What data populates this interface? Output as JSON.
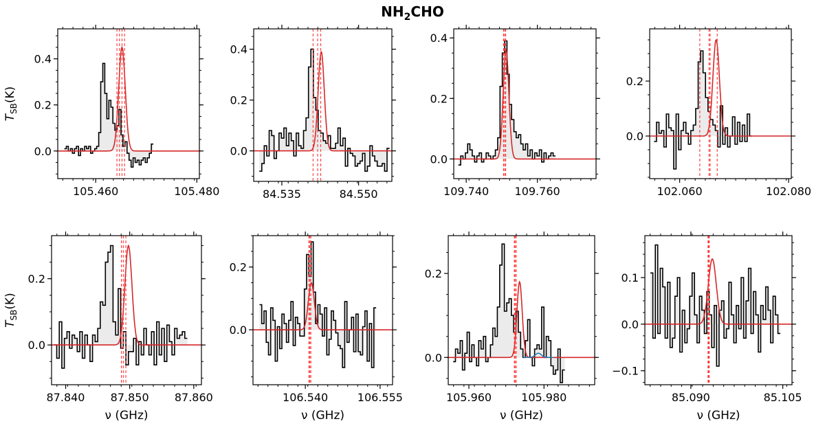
{
  "figure": {
    "title": "NH",
    "title_sub": "2",
    "title_rest": "CHO",
    "ylabel": "T",
    "ylabel_sub": "SB",
    "ylabel_unit": "(K)",
    "xlabel": "ν (GHz)",
    "colors": {
      "observed": "#000000",
      "fill": "#ebebeb",
      "model": "#d62728",
      "marker": "#ff3333",
      "blend": "#1f77b4"
    }
  },
  "chart_data": [
    {
      "type": "line",
      "panel": "row1-col1",
      "xlim": [
        105.4525,
        105.4805
      ],
      "ylim": [
        -0.12,
        0.53
      ],
      "xticks": [
        105.46,
        105.48
      ],
      "xtick_labels": [
        "105.460",
        "105.480"
      ],
      "yticks": [
        0.0,
        0.2,
        0.4
      ],
      "ytick_labels": [
        "0.0",
        "0.2",
        "0.4"
      ],
      "ytick_side": "left",
      "show_ylabel": true,
      "show_xlabel": false,
      "x_start": 105.4538,
      "x_step": 0.0004,
      "observed": [
        0.01,
        0.02,
        0.0,
        0.01,
        -0.01,
        0.01,
        0.02,
        -0.02,
        0.01,
        0.0,
        0.02,
        0.01,
        0.02,
        -0.01,
        0.0,
        0.01,
        0.02,
        0.08,
        0.3,
        0.38,
        0.25,
        0.14,
        0.22,
        0.19,
        0.12,
        0.09,
        0.11,
        0.18,
        0.07,
        0.02,
        0.04,
        -0.01,
        -0.04,
        -0.07,
        -0.03,
        -0.05,
        -0.04,
        -0.06,
        -0.04,
        -0.03,
        -0.05,
        -0.03,
        -0.01,
        0.03
      ],
      "model": {
        "center": 105.4652,
        "amplitude": 0.45,
        "sigma": 0.00065
      },
      "markers": [
        105.4642,
        105.4647,
        105.4652,
        105.4657
      ],
      "blend": null
    },
    {
      "type": "line",
      "panel": "row1-col2",
      "xlim": [
        84.5295,
        84.5565
      ],
      "ylim": [
        -0.12,
        0.48
      ],
      "xticks": [
        84.535,
        84.55
      ],
      "xtick_labels": [
        "84.535",
        "84.550"
      ],
      "yticks": [
        0.0,
        0.2,
        0.4
      ],
      "ytick_labels": [
        "0.0",
        "0.2",
        "0.4"
      ],
      "ytick_side": "left",
      "show_ylabel": false,
      "show_xlabel": false,
      "x_start": 84.5306,
      "x_step": 0.00048,
      "observed": [
        -0.08,
        -0.05,
        0.02,
        -0.02,
        0.08,
        0.06,
        -0.03,
        0.0,
        0.07,
        0.05,
        0.09,
        0.02,
        0.07,
        0.04,
        -0.02,
        0.07,
        0.02,
        0.01,
        0.08,
        0.13,
        0.33,
        0.4,
        0.21,
        0.16,
        0.08,
        0.07,
        0.04,
        0.03,
        0.06,
        0.01,
        0.01,
        0.03,
        0.09,
        0.02,
        0.05,
        -0.06,
        0.01,
        -0.01,
        -0.02,
        -0.06,
        -0.05,
        -0.04,
        -0.01,
        -0.08,
        -0.06,
        0.02,
        -0.02,
        -0.04,
        -0.06,
        -0.06,
        -0.05,
        -0.08,
        0.01
      ],
      "model": {
        "center": 84.5427,
        "amplitude": 0.39,
        "sigma": 0.0006
      },
      "markers": [
        84.5411,
        84.542,
        84.5426
      ],
      "blend": null
    },
    {
      "type": "line",
      "panel": "row1-col3",
      "xlim": [
        109.7365,
        109.7765
      ],
      "ylim": [
        -0.065,
        0.43
      ],
      "xticks": [
        109.74,
        109.76
      ],
      "xtick_labels": [
        "109.740",
        "109.760"
      ],
      "yticks": [
        0.0,
        0.2,
        0.4
      ],
      "ytick_labels": [
        "0.0",
        "0.2",
        "0.4"
      ],
      "ytick_side": "left",
      "show_ylabel": false,
      "show_xlabel": false,
      "x_start": 109.7378,
      "x_step": 0.00065,
      "observed": [
        -0.02,
        0.01,
        0.0,
        0.02,
        0.05,
        0.03,
        0.01,
        -0.01,
        0.01,
        0.02,
        -0.01,
        0.0,
        0.02,
        0.01,
        0.0,
        0.01,
        0.03,
        0.07,
        0.24,
        0.35,
        0.39,
        0.28,
        0.18,
        0.13,
        0.09,
        0.07,
        0.08,
        0.05,
        0.03,
        0.05,
        0.01,
        0.03,
        0.0,
        0.02,
        0.01,
        0.03,
        -0.01,
        0.02,
        0.0,
        0.01,
        0.02,
        0.01
      ],
      "model": {
        "center": 109.7512,
        "amplitude": 0.36,
        "sigma": 0.0008
      },
      "markers": [
        109.7505,
        109.7508,
        109.7511
      ],
      "blend": null
    },
    {
      "type": "line",
      "panel": "row1-col4",
      "xlim": [
        102.0545,
        102.0805
      ],
      "ylim": [
        -0.155,
        0.39
      ],
      "xticks": [
        102.06,
        102.08
      ],
      "xtick_labels": [
        "102.060",
        "102.080"
      ],
      "yticks": [
        0.0,
        0.2
      ],
      "ytick_labels": [
        "0.0",
        "0.2"
      ],
      "ytick_side": "left",
      "show_ylabel": false,
      "show_xlabel": false,
      "x_start": 102.0553,
      "x_step": 0.00045,
      "observed": [
        -0.02,
        0.05,
        0.01,
        0.02,
        -0.04,
        0.08,
        0.03,
        0.02,
        -0.12,
        0.08,
        -0.05,
        0.02,
        0.05,
        0.01,
        -0.03,
        0.02,
        0.04,
        0.1,
        0.27,
        0.31,
        0.23,
        0.14,
        0.09,
        0.06,
        0.04,
        0.02,
        -0.04,
        0.11,
        -0.03,
        0.03,
        -0.04,
        0.0,
        0.07,
        -0.03,
        0.05,
        -0.02,
        0.04,
        -0.02,
        0.08,
        0.0
      ],
      "model": {
        "center": 102.0667,
        "amplitude": 0.35,
        "sigma": 0.0006
      },
      "markers": [
        102.0637,
        102.0654,
        102.0656,
        102.0669
      ],
      "blend": null
    },
    {
      "type": "line",
      "panel": "row2-col1",
      "xlim": [
        87.8378,
        87.8612
      ],
      "ylim": [
        -0.12,
        0.33
      ],
      "xticks": [
        87.84,
        87.85,
        87.86
      ],
      "xtick_labels": [
        "87.840",
        "87.850",
        "87.860"
      ],
      "yticks": [
        0.0,
        0.2
      ],
      "ytick_labels": [
        "0.0",
        "0.2"
      ],
      "ytick_side": "left",
      "show_ylabel": true,
      "show_xlabel": true,
      "x_start": 87.8382,
      "x_step": 0.0004,
      "observed": [
        0.0,
        -0.04,
        0.07,
        -0.07,
        0.02,
        0.04,
        -0.01,
        0.03,
        0.02,
        -0.02,
        0.04,
        -0.04,
        0.03,
        0.0,
        -0.05,
        0.03,
        0.01,
        0.05,
        0.13,
        0.12,
        0.25,
        0.28,
        0.3,
        0.07,
        0.03,
        0.17,
        -0.01,
        0.04,
        -0.06,
        -0.02,
        -0.02,
        0.02,
        -0.06,
        0.01,
        -0.03,
        0.05,
        0.0,
        -0.03,
        0.04,
        -0.06,
        0.07,
        -0.03,
        0.05,
        -0.05,
        0.06,
        0.01,
        -0.03,
        0.05,
        0.02,
        0.03,
        0.04,
        0.02
      ],
      "model": {
        "center": 87.8498,
        "amplitude": 0.3,
        "sigma": 0.00055
      },
      "markers": [
        87.8487,
        87.849,
        87.8494
      ],
      "blend": null
    },
    {
      "type": "line",
      "panel": "row2-col2",
      "xlim": [
        106.5295,
        106.5575
      ],
      "ylim": [
        -0.175,
        0.3
      ],
      "xticks": [
        106.54,
        106.555
      ],
      "xtick_labels": [
        "106.540",
        "106.555"
      ],
      "yticks": [
        0.0,
        0.2
      ],
      "ytick_labels": [
        "0.0",
        "0.2"
      ],
      "ytick_side": "left",
      "show_ylabel": false,
      "show_xlabel": true,
      "x_start": 106.5308,
      "x_step": 0.00045,
      "observed": [
        0.08,
        0.02,
        0.06,
        -0.04,
        -0.08,
        0.07,
        0.03,
        -0.1,
        0.01,
        -0.06,
        0.05,
        0.02,
        -0.04,
        0.03,
        0.09,
        -0.05,
        0.04,
        0.02,
        -0.02,
        -0.02,
        0.13,
        0.24,
        0.17,
        0.28,
        0.12,
        0.02,
        0.08,
        0.05,
        -0.02,
        0.07,
        -0.08,
        -0.03,
        0.06,
        0.03,
        -0.01,
        -0.05,
        -0.06,
        -0.12,
        0.09,
        -0.04,
        0.0,
        0.04,
        -0.07,
        0.05,
        -0.07,
        -0.08,
        0.01,
        0.06,
        -0.1,
        0.02,
        -0.12,
        0.07
      ],
      "model": {
        "center": 106.5412,
        "amplitude": 0.15,
        "sigma": 0.0006
      },
      "markers": [
        106.5407,
        106.5409,
        106.5411
      ],
      "blend": null
    },
    {
      "type": "line",
      "panel": "row2-col3",
      "xlim": [
        105.9545,
        105.9935
      ],
      "ylim": [
        -0.065,
        0.29
      ],
      "xticks": [
        105.96,
        105.98
      ],
      "xtick_labels": [
        "105.960",
        "105.980"
      ],
      "yticks": [
        0.0,
        0.2
      ],
      "ytick_labels": [
        "0.0",
        "0.2"
      ],
      "ytick_side": "left",
      "show_ylabel": false,
      "show_xlabel": true,
      "x_start": 105.9558,
      "x_step": 0.00062,
      "observed": [
        -0.01,
        0.02,
        0.01,
        0.04,
        -0.03,
        0.01,
        0.06,
        -0.01,
        0.03,
        0.0,
        -0.02,
        0.04,
        0.02,
        0.05,
        -0.01,
        0.0,
        0.03,
        0.07,
        0.05,
        0.12,
        0.22,
        0.27,
        0.11,
        0.13,
        0.14,
        0.1,
        0.06,
        0.11,
        0.06,
        0.02,
        0.0,
        0.04,
        0.09,
        0.0,
        -0.02,
        0.02,
        0.03,
        0.02,
        0.12,
        0.0,
        0.05,
        0.04,
        -0.02,
        -0.04,
        -0.03,
        0.02,
        -0.06,
        -0.03
      ],
      "model": {
        "center": 105.9735,
        "amplitude": 0.18,
        "sigma": 0.0007
      },
      "markers": [
        105.9721,
        105.9723,
        105.9726
      ],
      "blend": {
        "center": 105.9785,
        "amplitude": 0.01,
        "sigma": 0.0008
      }
    },
    {
      "type": "line",
      "panel": "row2-col4",
      "xlim": [
        85.0825,
        85.1065
      ],
      "ylim": [
        -0.13,
        0.19
      ],
      "xticks": [
        85.09,
        85.105
      ],
      "xtick_labels": [
        "85.090",
        "85.105"
      ],
      "yticks": [
        -0.1,
        0.0,
        0.1
      ],
      "ytick_labels": [
        "−0.1",
        "0.0",
        "0.1"
      ],
      "ytick_side": "left",
      "show_ylabel": false,
      "show_xlabel": true,
      "x_start": 85.0834,
      "x_step": 0.0004,
      "observed": [
        0.11,
        -0.03,
        0.17,
        -0.02,
        0.12,
        0.08,
        -0.03,
        0.09,
        -0.05,
        -0.03,
        0.06,
        0.1,
        -0.06,
        0.03,
        -0.04,
        -0.01,
        0.06,
        0.11,
        0.02,
        -0.04,
        0.06,
        0.03,
        -0.02,
        0.07,
        0.02,
        -0.05,
        0.04,
        -0.09,
        0.03,
        0.05,
        -0.03,
        -0.01,
        0.09,
        0.02,
        -0.04,
        0.04,
        -0.01,
        0.1,
        -0.03,
        0.05,
        0.12,
        -0.02,
        0.07,
        0.02,
        -0.06,
        0.04,
        0.01,
        0.08,
        0.03,
        -0.04,
        0.06,
        0.02,
        -0.02
      ],
      "model": {
        "center": 85.0935,
        "amplitude": 0.14,
        "sigma": 0.00065
      },
      "markers": [
        85.0928,
        85.0929,
        85.093
      ],
      "blend": null
    }
  ]
}
